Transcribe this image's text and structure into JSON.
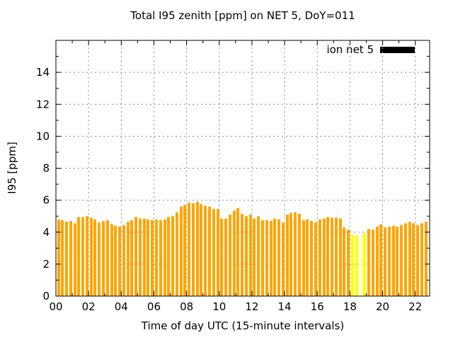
{
  "title": "Total I95 zenith [ppm] on NET 5, DoY=011",
  "legend": {
    "label": "ion net 5",
    "swatch_color": "#000000",
    "position": "top-right-inside"
  },
  "chart_data": {
    "type": "bar",
    "title": "Total I95 zenith [ppm] on NET 5, DoY=011",
    "xlabel": "Time of day UTC (15-minute intervals)",
    "ylabel": "I95 [ppm]",
    "ylim": [
      0,
      16
    ],
    "yticks": [
      0,
      2,
      4,
      6,
      8,
      10,
      12,
      14
    ],
    "xtick_hours": [
      0,
      2,
      4,
      6,
      8,
      10,
      12,
      14,
      16,
      18,
      20,
      22
    ],
    "xtick_labels": [
      "00",
      "02",
      "04",
      "06",
      "08",
      "10",
      "12",
      "14",
      "16",
      "18",
      "20",
      "22"
    ],
    "x_span_hours": 22.88,
    "grid": true,
    "grid_color": "#8c8c8c",
    "x": [
      "00:00",
      "00:15",
      "00:30",
      "00:45",
      "01:00",
      "01:15",
      "01:30",
      "01:45",
      "02:00",
      "02:15",
      "02:30",
      "02:45",
      "03:00",
      "03:15",
      "03:30",
      "03:45",
      "04:00",
      "04:15",
      "04:30",
      "04:45",
      "05:00",
      "05:15",
      "05:30",
      "05:45",
      "06:00",
      "06:15",
      "06:30",
      "06:45",
      "07:00",
      "07:15",
      "07:30",
      "07:45",
      "08:00",
      "08:15",
      "08:30",
      "08:45",
      "09:00",
      "09:15",
      "09:30",
      "09:45",
      "10:00",
      "10:15",
      "10:30",
      "10:45",
      "11:00",
      "11:15",
      "11:30",
      "11:45",
      "12:00",
      "12:15",
      "12:30",
      "12:45",
      "13:00",
      "13:15",
      "13:30",
      "13:45",
      "14:00",
      "14:15",
      "14:30",
      "14:45",
      "15:00",
      "15:15",
      "15:30",
      "15:45",
      "16:00",
      "16:15",
      "16:30",
      "16:45",
      "17:00",
      "17:15",
      "17:30",
      "17:45",
      "18:00",
      "18:15",
      "18:30",
      "18:45",
      "19:00",
      "19:15",
      "19:30",
      "19:45",
      "20:00",
      "20:15",
      "20:30",
      "20:45",
      "21:00",
      "21:15",
      "21:30",
      "21:45",
      "22:00",
      "22:15",
      "22:30"
    ],
    "series": [
      {
        "name": "ion net 5",
        "values": [
          4.8,
          4.75,
          4.65,
          4.7,
          4.55,
          4.95,
          4.95,
          5.0,
          4.9,
          4.8,
          4.6,
          4.7,
          4.75,
          4.5,
          4.4,
          4.35,
          4.45,
          4.65,
          4.75,
          4.95,
          4.85,
          4.85,
          4.8,
          4.75,
          4.8,
          4.75,
          4.8,
          4.95,
          5.0,
          5.25,
          5.6,
          5.7,
          5.85,
          5.8,
          5.9,
          5.75,
          5.65,
          5.6,
          5.45,
          5.45,
          4.85,
          4.85,
          5.1,
          5.35,
          5.5,
          5.15,
          5.0,
          5.1,
          4.85,
          5.0,
          4.75,
          4.75,
          4.7,
          4.85,
          4.8,
          4.6,
          5.1,
          5.2,
          5.25,
          5.15,
          4.75,
          4.8,
          4.7,
          4.6,
          4.8,
          4.85,
          4.95,
          4.9,
          4.9,
          4.85,
          4.3,
          4.15,
          3.85,
          3.8,
          3.7,
          3.95,
          4.2,
          4.15,
          4.35,
          4.5,
          4.3,
          4.35,
          4.4,
          4.35,
          4.45,
          4.55,
          4.65,
          4.55,
          4.45,
          4.55,
          4.65
        ],
        "bar_color_default": "#FFA500",
        "bar_color_overrides": {
          "72": "#FFFF00",
          "73": "#FFFF00",
          "74": "#FFFFC0",
          "75": "#FFFF00"
        }
      }
    ]
  }
}
